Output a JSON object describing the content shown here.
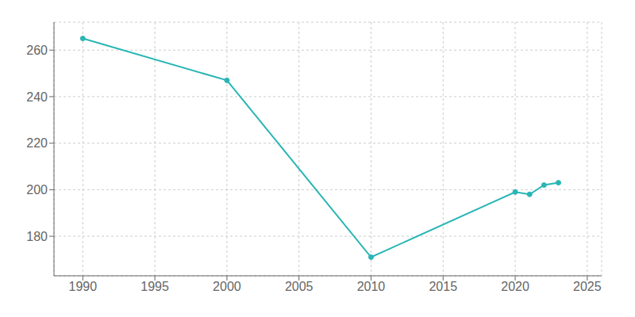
{
  "chart_data": {
    "type": "line",
    "x": [
      1990,
      2000,
      2010,
      2020,
      2021,
      2022,
      2023
    ],
    "values": [
      265,
      247,
      171,
      199,
      198,
      202,
      203
    ],
    "color": "#2ab5b5",
    "marker": "circle",
    "xlim": [
      1988,
      2026
    ],
    "ylim": [
      163,
      272
    ],
    "xticks": [
      1990,
      1995,
      2000,
      2005,
      2010,
      2015,
      2020,
      2025
    ],
    "yticks": [
      180,
      200,
      220,
      240,
      260
    ],
    "grid": true
  }
}
